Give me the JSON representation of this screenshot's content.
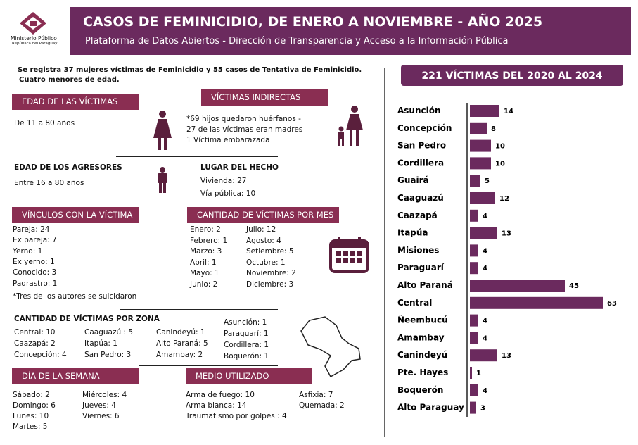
{
  "header": {
    "org": [
      "Ministerio Público",
      "República del Paraguay"
    ],
    "title": "CASOS DE FEMINICIDIO, DE ENERO A NOVIEMBRE - AÑO 2025",
    "subtitle": "Plataforma de Datos Abiertos  - Dirección de Transparencia y Acceso a la Información Pública"
  },
  "intro": [
    "Se registra 37 mujeres víctimas de Feminicidio y 55 casos de Tentativa de Feminicidio.",
    "Cuatro menores de edad."
  ],
  "edad_victimas": {
    "title": "EDAD DE LAS VÍCTIMAS",
    "lines": [
      "De 11 a 80 años"
    ]
  },
  "victimas_indirectas": {
    "title": "VÍCTIMAS INDIRECTAS",
    "lines": [
      "*69 hijos quedaron huérfanos -",
      "27 de las víctimas eran madres",
      "1 Víctima embarazada"
    ]
  },
  "edad_agresores": {
    "title": "EDAD DE LOS AGRESORES",
    "lines": [
      "Entre 16 a 80 años"
    ]
  },
  "lugar": {
    "title": "LUGAR DEL HECHO",
    "lines": [
      "Vivienda: 27",
      "Vía pública: 10"
    ]
  },
  "vinculos": {
    "title": "VÍNCULOS CON LA VÍCTIMA",
    "lines": [
      "Pareja: 24",
      "Ex pareja: 7",
      "Yerno: 1",
      "Ex yerno: 1",
      "Conocido: 3",
      "Padrastro: 1"
    ],
    "note": "*Tres de los autores se suicidaron"
  },
  "por_mes": {
    "title": "CANTIDAD DE VÍCTIMAS POR MES",
    "columns": [
      [
        "Enero: 2",
        "Febrero: 1",
        "Marzo: 3",
        "Abril: 1",
        "Mayo: 1",
        "Junio: 2"
      ],
      [
        "Julio: 12",
        "Agosto: 4",
        "Setiembre: 5",
        "Octubre: 1",
        "Noviembre: 2",
        "Diciembre: 3"
      ]
    ]
  },
  "por_zona": {
    "title": "CANTIDAD DE VÍCTIMAS POR ZONA",
    "columns": [
      [
        "Central: 10",
        "Caazapá: 2",
        "Concepción: 4"
      ],
      [
        "Caaguazú : 5",
        "Itapúa: 1",
        "San Pedro: 3"
      ],
      [
        "Canindeyú: 1",
        "Alto Paraná: 5",
        "Amambay: 2"
      ],
      [
        "Asunción: 1",
        "Paraguarí: 1",
        "Cordillera: 1",
        "Boquerón: 1"
      ]
    ]
  },
  "dia_semana": {
    "title": "DÍA DE LA SEMANA",
    "columns": [
      [
        "Sábado: 2",
        "Domingo: 6",
        "Lunes: 10",
        "Martes: 5"
      ],
      [
        "Miércoles: 4",
        "Jueves: 4",
        "Viernes: 6"
      ]
    ]
  },
  "medio": {
    "title": "MEDIO UTILIZADO",
    "columns": [
      [
        "Arma de fuego: 10",
        "Arma blanca: 14",
        "Traumatismo  por golpes : 4"
      ],
      [
        "Asfixia: 7",
        "Quemada: 2"
      ]
    ]
  },
  "chart_data": {
    "type": "bar",
    "orientation": "horizontal",
    "title": "221  VÍCTIMAS DEL 2020 AL 2024",
    "color": "#6b2a5e",
    "categories": [
      "Asunción",
      "Concepción",
      "San Pedro",
      "Cordillera",
      "Guairá",
      "Caaguazú",
      "Caazapá",
      "Itapúa",
      "Misiones",
      "Paraguarí",
      "Alto Paraná",
      "Central",
      "Ñeembucú",
      "Amambay",
      "Canindeyú",
      "Pte. Hayes",
      "Boquerón",
      "Alto Paraguay"
    ],
    "values": [
      14,
      8,
      10,
      10,
      5,
      12,
      4,
      13,
      4,
      4,
      45,
      63,
      4,
      4,
      13,
      1,
      4,
      3
    ]
  }
}
